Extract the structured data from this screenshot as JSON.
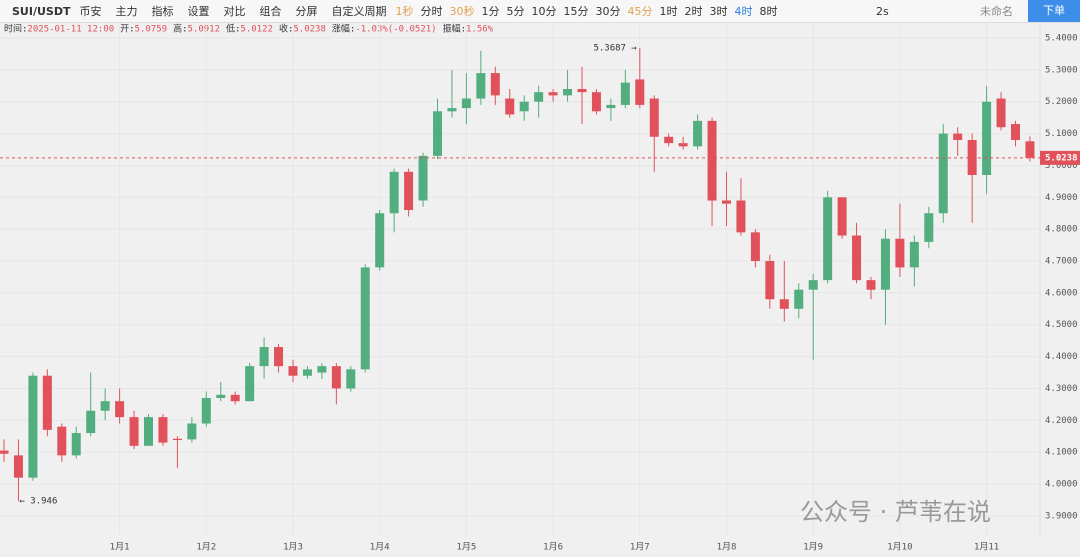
{
  "toolbar": {
    "symbol": "SUI/USDT",
    "exchange": "币安",
    "tools": [
      "主力",
      "指标",
      "设置",
      "对比",
      "组合",
      "分屏"
    ],
    "custom_period": "自定义周期",
    "intervals": [
      {
        "label": "1秒",
        "state": "muted"
      },
      {
        "label": "分时",
        "state": "normal"
      },
      {
        "label": "30秒",
        "state": "muted"
      },
      {
        "label": "1分",
        "state": "normal"
      },
      {
        "label": "5分",
        "state": "normal"
      },
      {
        "label": "10分",
        "state": "normal"
      },
      {
        "label": "15分",
        "state": "normal"
      },
      {
        "label": "30分",
        "state": "normal"
      },
      {
        "label": "45分",
        "state": "muted"
      },
      {
        "label": "1时",
        "state": "normal"
      },
      {
        "label": "2时",
        "state": "normal"
      },
      {
        "label": "3时",
        "state": "normal"
      },
      {
        "label": "4时",
        "state": "active"
      },
      {
        "label": "8时",
        "state": "normal"
      }
    ],
    "refresh": "2s",
    "layout_name": "未命名",
    "order_button": "下单"
  },
  "info": [
    {
      "label": "时间:",
      "value": "2025-01-11 12:00"
    },
    {
      "label": "开:",
      "value": "5.0759"
    },
    {
      "label": "高:",
      "value": "5.0912"
    },
    {
      "label": "低:",
      "value": "5.0122"
    },
    {
      "label": "收:",
      "value": "5.0238"
    },
    {
      "label": "涨幅:",
      "value": "-1.03%(-0.0521)"
    },
    {
      "label": "振幅:",
      "value": "1.56%"
    }
  ],
  "watermark": "公众号 · 芦苇在说",
  "chart_data": {
    "type": "candlestick",
    "up_color": "#52ad7f",
    "down_color": "#e0515b",
    "grid": true,
    "categories": [
      null,
      null,
      null,
      null,
      null,
      null,
      null,
      null,
      "1月1",
      null,
      null,
      null,
      null,
      null,
      "1月2",
      null,
      null,
      null,
      null,
      null,
      "1月3",
      null,
      null,
      null,
      null,
      null,
      "1月4",
      null,
      null,
      null,
      null,
      null,
      "1月5",
      null,
      null,
      null,
      null,
      null,
      "1月6",
      null,
      null,
      null,
      null,
      null,
      "1月7",
      null,
      null,
      null,
      null,
      null,
      "1月8",
      null,
      null,
      null,
      null,
      null,
      "1月9",
      null,
      null,
      null,
      null,
      null,
      "1月10",
      null,
      null,
      null,
      null,
      null,
      "1月11",
      null,
      null,
      null
    ],
    "open": [
      4.105,
      4.09,
      4.02,
      4.34,
      4.18,
      4.09,
      4.16,
      4.23,
      4.26,
      4.21,
      4.12,
      4.21,
      4.142,
      4.14,
      4.19,
      4.27,
      4.28,
      4.26,
      4.37,
      4.43,
      4.37,
      4.34,
      4.35,
      4.37,
      4.3,
      4.36,
      4.68,
      4.85,
      4.98,
      4.89,
      5.03,
      5.17,
      5.18,
      5.21,
      5.29,
      5.21,
      5.17,
      5.2,
      5.23,
      5.22,
      5.24,
      5.23,
      5.18,
      5.19,
      5.27,
      5.21,
      5.09,
      5.07,
      5.06,
      5.14,
      4.89,
      4.89,
      4.79,
      4.7,
      4.58,
      4.55,
      4.61,
      4.64,
      4.9,
      4.78,
      4.64,
      4.61,
      4.77,
      4.68,
      4.76,
      4.85,
      5.1,
      5.08,
      4.97,
      5.21,
      5.13,
      5.0759
    ],
    "high": [
      4.14,
      4.14,
      4.35,
      4.36,
      4.19,
      4.18,
      4.35,
      4.3,
      4.3,
      4.23,
      4.22,
      4.22,
      4.15,
      4.21,
      4.29,
      4.32,
      4.29,
      4.38,
      4.46,
      4.44,
      4.39,
      4.37,
      4.38,
      4.38,
      4.37,
      4.69,
      4.86,
      4.99,
      4.99,
      5.04,
      5.21,
      5.3,
      5.29,
      5.36,
      5.31,
      5.24,
      5.22,
      5.25,
      5.24,
      5.3,
      5.31,
      5.24,
      5.21,
      5.3,
      5.3687,
      5.22,
      5.1,
      5.09,
      5.16,
      5.15,
      4.98,
      4.96,
      4.8,
      4.72,
      4.7,
      4.63,
      4.66,
      4.92,
      4.9,
      4.82,
      4.65,
      4.8,
      4.88,
      4.78,
      4.87,
      5.13,
      5.12,
      5.1,
      5.25,
      5.23,
      5.14,
      5.0912
    ],
    "low": [
      4.07,
      3.946,
      4.01,
      4.15,
      4.07,
      4.08,
      4.15,
      4.2,
      4.19,
      4.11,
      4.12,
      4.12,
      4.05,
      4.13,
      4.18,
      4.26,
      4.25,
      4.26,
      4.33,
      4.35,
      4.32,
      4.33,
      4.33,
      4.25,
      4.29,
      4.35,
      4.67,
      4.79,
      4.84,
      4.87,
      5.02,
      5.15,
      5.13,
      5.19,
      5.19,
      5.15,
      5.14,
      5.15,
      5.2,
      5.2,
      5.13,
      5.16,
      5.14,
      5.18,
      5.18,
      4.98,
      5.06,
      5.05,
      5.05,
      4.81,
      4.81,
      4.78,
      4.68,
      4.55,
      4.51,
      4.52,
      4.39,
      4.63,
      4.77,
      4.63,
      4.58,
      4.5,
      4.65,
      4.62,
      4.74,
      4.82,
      5.03,
      4.82,
      4.91,
      5.11,
      5.06,
      5.0122
    ],
    "close": [
      4.095,
      4.02,
      4.34,
      4.17,
      4.09,
      4.16,
      4.23,
      4.26,
      4.21,
      4.12,
      4.21,
      4.13,
      4.138,
      4.19,
      4.27,
      4.28,
      4.26,
      4.37,
      4.43,
      4.37,
      4.34,
      4.36,
      4.37,
      4.3,
      4.36,
      4.68,
      4.85,
      4.98,
      4.86,
      5.03,
      5.17,
      5.18,
      5.21,
      5.29,
      5.22,
      5.16,
      5.2,
      5.23,
      5.22,
      5.24,
      5.23,
      5.17,
      5.19,
      5.26,
      5.19,
      5.09,
      5.07,
      5.06,
      5.14,
      4.89,
      4.88,
      4.79,
      4.7,
      4.58,
      4.55,
      4.61,
      4.64,
      4.9,
      4.78,
      4.64,
      4.61,
      4.77,
      4.68,
      4.76,
      4.85,
      5.1,
      5.08,
      4.97,
      5.2,
      5.12,
      5.08,
      5.0238
    ],
    "max_label": "5.3687 →",
    "min_label": "← 3.946",
    "ylim": [
      3.84,
      5.444
    ],
    "yticks": [
      {
        "value": 3.9,
        "label": "3.9000"
      },
      {
        "value": 4.0,
        "label": "4.0000"
      },
      {
        "value": 4.1,
        "label": "4.1000"
      },
      {
        "value": 4.2,
        "label": "4.2000"
      },
      {
        "value": 4.3,
        "label": "4.3000"
      },
      {
        "value": 4.4,
        "label": "4.4000"
      },
      {
        "value": 4.5,
        "label": "4.5000"
      },
      {
        "value": 4.6,
        "label": "4.6000"
      },
      {
        "value": 4.7,
        "label": "4.7000"
      },
      {
        "value": 4.8,
        "label": "4.8000"
      },
      {
        "value": 4.9,
        "label": "4.9000"
      },
      {
        "value": 5.0,
        "label": "5.0000"
      },
      {
        "value": 5.1,
        "label": "5.1000"
      },
      {
        "value": 5.2,
        "label": "5.2000"
      },
      {
        "value": 5.3,
        "label": "5.3000"
      },
      {
        "value": 5.4,
        "label": "5.4000"
      }
    ]
  }
}
